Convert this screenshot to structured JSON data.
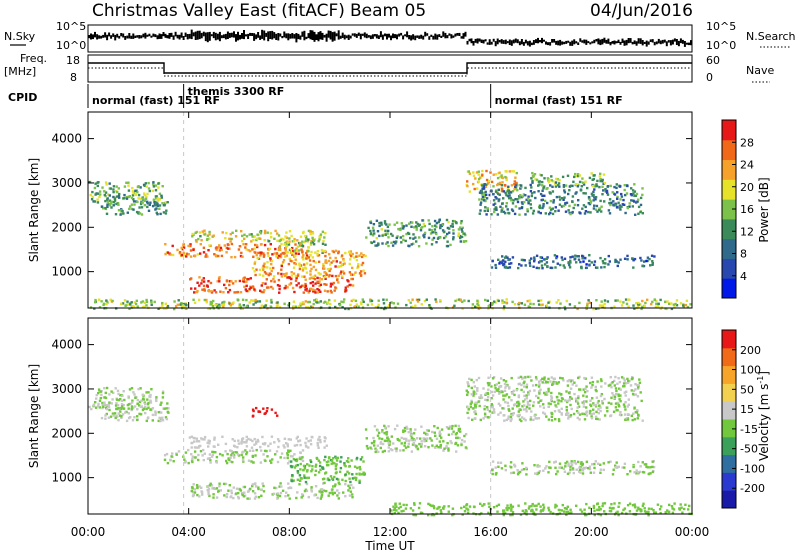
{
  "header": {
    "title": "Christmas Valley East (fitACF)",
    "beam": "Beam 05",
    "date": "04/Jun/2016"
  },
  "panels": {
    "nsky_label": "N.Sky",
    "nsky_tick_hi": "10^5",
    "nsky_tick_lo": "10^0",
    "nsky_right_hi": "10^5",
    "nsky_right_lo": "10^0",
    "nsearch_label": "N.Search",
    "freq_label": "Freq.",
    "freq_unit": "[MHz]",
    "freq_tick_hi": "18",
    "freq_tick_lo": "8",
    "nave_tick_hi": "60",
    "nave_tick_lo": "0",
    "nave_label": "Nave",
    "cpid_label": "CPID",
    "cpid_segments": [
      {
        "text": "normal (fast)  151 RF",
        "start_h": 0,
        "end_h": 3.8
      },
      {
        "text": "themis 3300 RF",
        "start_h": 3.8,
        "end_h": 16.0
      },
      {
        "text": "normal (fast)  151 RF",
        "start_h": 16.0,
        "end_h": 24
      }
    ]
  },
  "time_axis": {
    "label": "Time UT",
    "ticks": [
      "00:00",
      "04:00",
      "08:00",
      "12:00",
      "16:00",
      "20:00",
      "00:00"
    ]
  },
  "power_colorbar": {
    "label": "Power [dB]",
    "ticks": [
      "4",
      "8",
      "12",
      "16",
      "20",
      "24",
      "28"
    ],
    "colors": [
      "#0018e8",
      "#2848b0",
      "#2f6a8a",
      "#3a8a5a",
      "#7cc24a",
      "#e6e22a",
      "#f6a12a",
      "#f06818",
      "#e61818"
    ]
  },
  "velocity_colorbar": {
    "label": "Velocity [m s",
    "label_sup": "-1",
    "label_end": "]",
    "ticks": [
      "200",
      "100",
      "50",
      "15",
      "-15",
      "-50",
      "-100",
      "-200"
    ],
    "colors": [
      "#1a1aa8",
      "#2a3ad0",
      "#2e6ea0",
      "#3aa05a",
      "#72c83c",
      "#c8c8c8",
      "#f2d050",
      "#f6a42a",
      "#f06a18",
      "#e81818"
    ]
  },
  "chart_data": [
    {
      "type": "heatmap",
      "title": "Power",
      "ylabel": "Slant Range [km]",
      "xlabel": "Time UT",
      "ylim": [
        180,
        4600
      ],
      "xlim_hours": [
        0,
        24
      ],
      "yticks": [
        1000,
        2000,
        3000,
        4000
      ],
      "colorbar_label": "Power [dB]",
      "colorbar_range": [
        0,
        30
      ],
      "regions": [
        {
          "t": [
            0.0,
            3.0
          ],
          "range": [
            2550,
            3050
          ],
          "value": 14
        },
        {
          "t": [
            0.5,
            3.2
          ],
          "range": [
            2300,
            2700
          ],
          "value": 12
        },
        {
          "t": [
            3.0,
            8.5
          ],
          "range": [
            1350,
            1650
          ],
          "value": 24
        },
        {
          "t": [
            4.0,
            9.5
          ],
          "range": [
            1700,
            1950
          ],
          "value": 18
        },
        {
          "t": [
            4.0,
            10.5
          ],
          "range": [
            550,
            900
          ],
          "value": 26
        },
        {
          "t": [
            6.5,
            11.0
          ],
          "range": [
            900,
            1500
          ],
          "value": 22
        },
        {
          "t": [
            7.5,
            9.5
          ],
          "range": [
            1450,
            1750
          ],
          "value": 16
        },
        {
          "t": [
            11.0,
            15.0
          ],
          "range": [
            1600,
            2200
          ],
          "value": 12
        },
        {
          "t": [
            15.0,
            17.0
          ],
          "range": [
            2800,
            3300
          ],
          "value": 20
        },
        {
          "t": [
            15.5,
            22.0
          ],
          "range": [
            2300,
            3000
          ],
          "value": 10
        },
        {
          "t": [
            17.5,
            20.5
          ],
          "range": [
            2950,
            3250
          ],
          "value": 14
        },
        {
          "t": [
            16.0,
            22.5
          ],
          "range": [
            1100,
            1400
          ],
          "value": 8
        },
        {
          "t": [
            0.0,
            24.0
          ],
          "range": [
            180,
            400
          ],
          "value": 16
        }
      ]
    },
    {
      "type": "heatmap",
      "title": "Velocity",
      "ylabel": "Slant Range [km]",
      "xlabel": "Time UT",
      "ylim": [
        180,
        4600
      ],
      "xlim_hours": [
        0,
        24
      ],
      "yticks": [
        1000,
        2000,
        3000,
        4000
      ],
      "colorbar_label": "Velocity [m s-1]",
      "colorbar_range": [
        -250,
        250
      ],
      "regions": [
        {
          "t": [
            0.0,
            3.0
          ],
          "range": [
            2550,
            3050
          ],
          "value": 0
        },
        {
          "t": [
            0.5,
            3.2
          ],
          "range": [
            2300,
            2700
          ],
          "value": 0
        },
        {
          "t": [
            3.0,
            8.5
          ],
          "range": [
            1350,
            1650
          ],
          "value": 0
        },
        {
          "t": [
            4.0,
            9.5
          ],
          "range": [
            1700,
            1950
          ],
          "value": 30
        },
        {
          "t": [
            4.0,
            10.5
          ],
          "range": [
            550,
            900
          ],
          "value": 0
        },
        {
          "t": [
            8.0,
            11.0
          ],
          "range": [
            900,
            1500
          ],
          "value": -40
        },
        {
          "t": [
            6.5,
            7.5
          ],
          "range": [
            2400,
            2600
          ],
          "value": 220
        },
        {
          "t": [
            11.0,
            15.0
          ],
          "range": [
            1600,
            2200
          ],
          "value": 0
        },
        {
          "t": [
            15.0,
            22.0
          ],
          "range": [
            2300,
            3300
          ],
          "value": 0
        },
        {
          "t": [
            16.0,
            22.5
          ],
          "range": [
            1100,
            1400
          ],
          "value": 0
        },
        {
          "t": [
            12.0,
            24.0
          ],
          "range": [
            180,
            450
          ],
          "value": -30
        }
      ]
    }
  ]
}
